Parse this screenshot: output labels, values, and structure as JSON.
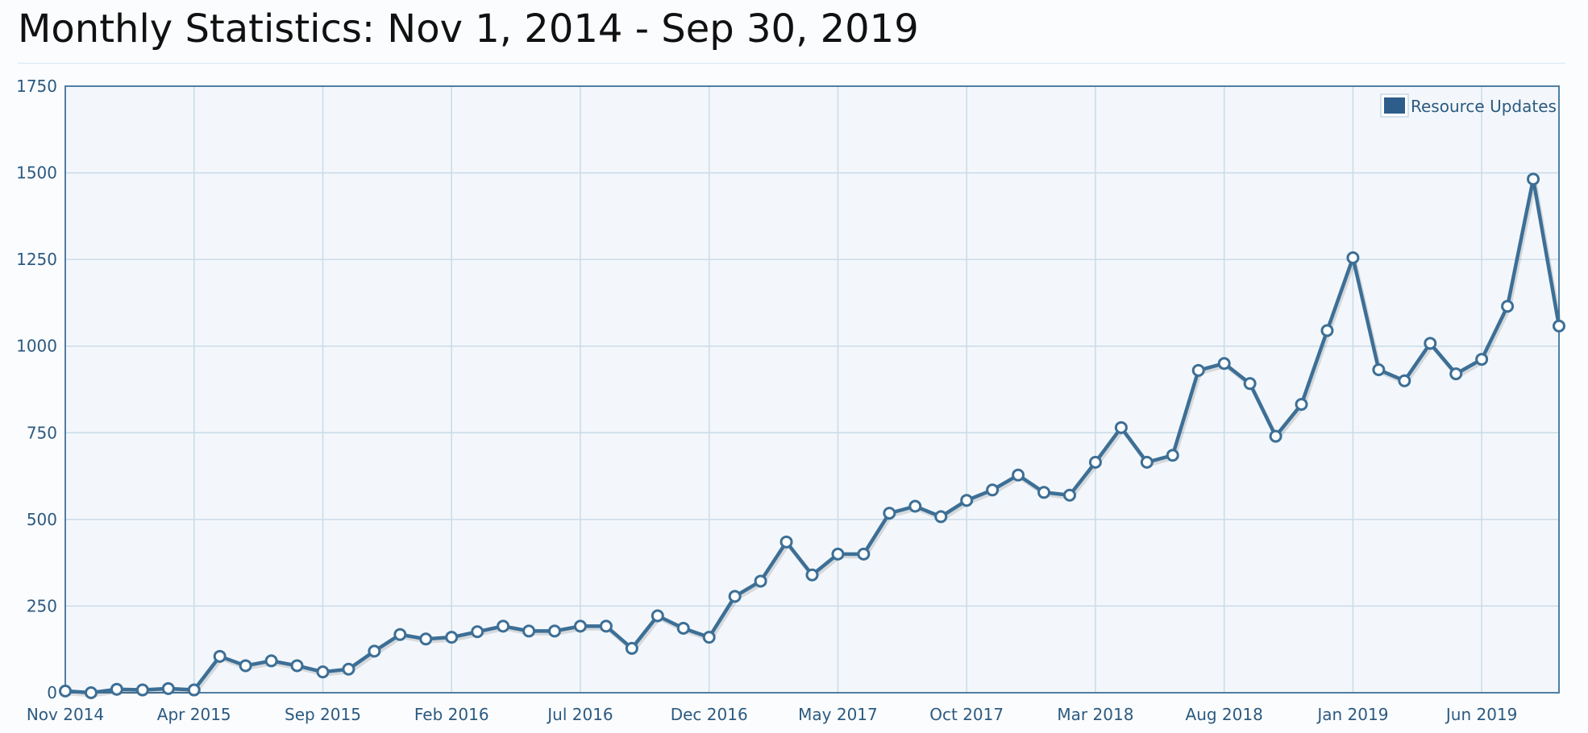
{
  "page": {
    "title": "Monthly Statistics: Nov 1, 2014 - Sep 30, 2019"
  },
  "colors": {
    "line": "#3d6f96",
    "plot_bg": "#f3f7fb",
    "grid": "#c9dbe8",
    "frame": "#4f7ea3",
    "legend_swatch": "#2d5d8a"
  },
  "chart_data": {
    "type": "line",
    "title": "",
    "xlabel": "",
    "ylabel": "",
    "ylim": [
      0,
      1750
    ],
    "yticks": [
      0,
      250,
      500,
      750,
      1000,
      1250,
      1500,
      1750
    ],
    "x": [
      "Nov 2014",
      "Dec 2014",
      "Jan 2015",
      "Feb 2015",
      "Mar 2015",
      "Apr 2015",
      "May 2015",
      "Jun 2015",
      "Jul 2015",
      "Aug 2015",
      "Sep 2015",
      "Oct 2015",
      "Nov 2015",
      "Dec 2015",
      "Jan 2016",
      "Feb 2016",
      "Mar 2016",
      "Apr 2016",
      "May 2016",
      "Jun 2016",
      "Jul 2016",
      "Aug 2016",
      "Sep 2016",
      "Oct 2016",
      "Nov 2016",
      "Dec 2016",
      "Jan 2017",
      "Feb 2017",
      "Mar 2017",
      "Apr 2017",
      "May 2017",
      "Jun 2017",
      "Jul 2017",
      "Aug 2017",
      "Sep 2017",
      "Oct 2017",
      "Nov 2017",
      "Dec 2017",
      "Jan 2018",
      "Feb 2018",
      "Mar 2018",
      "Apr 2018",
      "May 2018",
      "Jun 2018",
      "Jul 2018",
      "Aug 2018",
      "Sep 2018",
      "Oct 2018",
      "Nov 2018",
      "Dec 2018",
      "Jan 2019",
      "Feb 2019",
      "Mar 2019",
      "Apr 2019",
      "May 2019",
      "Jun 2019",
      "Jul 2019",
      "Aug 2019",
      "Sep 2019"
    ],
    "xtick_labels": [
      "Nov 2014",
      "Apr 2015",
      "Sep 2015",
      "Feb 2016",
      "Jul 2016",
      "Dec 2016",
      "May 2017",
      "Oct 2017",
      "Mar 2018",
      "Aug 2018",
      "Jan 2019",
      "Jun 2019"
    ],
    "xtick_every": 5,
    "grid": true,
    "legend_position": "top-right",
    "series": [
      {
        "name": "Resource Updates",
        "values": [
          5,
          0,
          10,
          8,
          12,
          8,
          105,
          78,
          92,
          78,
          60,
          68,
          120,
          168,
          155,
          160,
          176,
          192,
          178,
          178,
          192,
          192,
          128,
          222,
          186,
          160,
          278,
          322,
          435,
          340,
          400,
          400,
          518,
          538,
          508,
          555,
          585,
          628,
          578,
          570,
          665,
          765,
          665,
          685,
          930,
          950,
          892,
          740,
          832,
          1045,
          1255,
          932,
          900,
          1008,
          920,
          962,
          1115,
          1482,
          1058
        ]
      }
    ]
  }
}
